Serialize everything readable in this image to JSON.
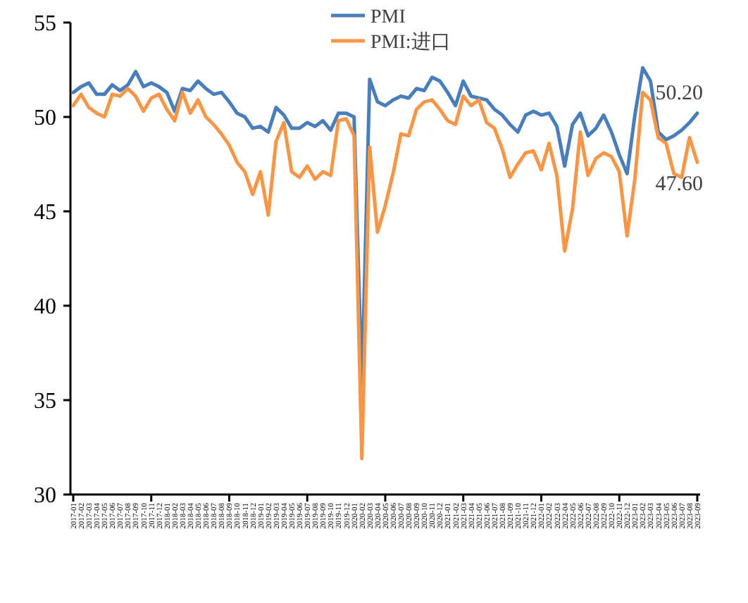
{
  "chart_data": {
    "type": "line",
    "categories": [
      "2017-01",
      "2017-02",
      "2017-03",
      "2017-04",
      "2017-05",
      "2017-06",
      "2017-07",
      "2017-08",
      "2017-09",
      "2017-10",
      "2017-11",
      "2017-12",
      "2018-01",
      "2018-02",
      "2018-03",
      "2018-04",
      "2018-05",
      "2018-06",
      "2018-07",
      "2018-08",
      "2018-09",
      "2018-10",
      "2018-11",
      "2018-12",
      "2019-01",
      "2019-02",
      "2019-03",
      "2019-04",
      "2019-05",
      "2019-06",
      "2019-07",
      "2019-08",
      "2019-09",
      "2019-10",
      "2019-11",
      "2019-12",
      "2020-01",
      "2020-02",
      "2020-03",
      "2020-04",
      "2020-05",
      "2020-06",
      "2020-07",
      "2020-08",
      "2020-09",
      "2020-10",
      "2020-11",
      "2020-12",
      "2021-01",
      "2021-02",
      "2021-03",
      "2021-04",
      "2021-05",
      "2021-06",
      "2021-07",
      "2021-08",
      "2021-09",
      "2021-10",
      "2021-11",
      "2021-12",
      "2022-01",
      "2022-02",
      "2022-03",
      "2022-04",
      "2022-05",
      "2022-06",
      "2022-07",
      "2022-08",
      "2022-09",
      "2022-10",
      "2022-11",
      "2022-12",
      "2023-01",
      "2023-02",
      "2023-03",
      "2023-04",
      "2023-05",
      "2023-06",
      "2023-07",
      "2023-08",
      "2023-09"
    ],
    "series": [
      {
        "name": "PMI",
        "color": "#4a7ebb",
        "values": [
          51.3,
          51.6,
          51.8,
          51.2,
          51.2,
          51.7,
          51.4,
          51.7,
          52.4,
          51.6,
          51.8,
          51.6,
          51.3,
          50.3,
          51.5,
          51.4,
          51.9,
          51.5,
          51.2,
          51.3,
          50.8,
          50.2,
          50.0,
          49.4,
          49.5,
          49.2,
          50.5,
          50.1,
          49.4,
          49.4,
          49.7,
          49.5,
          49.8,
          49.3,
          50.2,
          50.2,
          50.0,
          35.7,
          52.0,
          50.8,
          50.6,
          50.9,
          51.1,
          51.0,
          51.5,
          51.4,
          52.1,
          51.9,
          51.3,
          50.6,
          51.9,
          51.1,
          51.0,
          50.9,
          50.4,
          50.1,
          49.6,
          49.2,
          50.1,
          50.3,
          50.1,
          50.2,
          49.5,
          47.4,
          49.6,
          50.2,
          49.0,
          49.4,
          50.1,
          49.2,
          48.0,
          47.0,
          50.1,
          52.6,
          51.9,
          49.2,
          48.8,
          49.0,
          49.3,
          49.7,
          50.2
        ]
      },
      {
        "name": "PMI:进口",
        "color": "#f79646",
        "values": [
          50.6,
          51.2,
          50.5,
          50.2,
          50.0,
          51.2,
          51.1,
          51.5,
          51.1,
          50.3,
          51.0,
          51.2,
          50.4,
          49.8,
          51.3,
          50.2,
          50.9,
          50.0,
          49.6,
          49.1,
          48.5,
          47.6,
          47.1,
          45.9,
          47.1,
          44.8,
          48.7,
          49.7,
          47.1,
          46.8,
          47.4,
          46.7,
          47.1,
          46.9,
          49.8,
          49.9,
          49.0,
          31.9,
          48.4,
          43.9,
          45.3,
          47.0,
          49.1,
          49.0,
          50.4,
          50.8,
          50.9,
          50.4,
          49.8,
          49.6,
          51.1,
          50.6,
          50.9,
          49.7,
          49.4,
          48.3,
          46.8,
          47.5,
          48.1,
          48.2,
          47.2,
          48.6,
          46.9,
          42.9,
          45.1,
          49.2,
          46.9,
          47.8,
          48.1,
          47.9,
          47.1,
          43.7,
          46.7,
          51.3,
          50.9,
          48.9,
          48.6,
          47.0,
          46.8,
          48.9,
          47.6
        ]
      }
    ],
    "ylim": [
      30,
      55
    ],
    "yticks": [
      30,
      35,
      40,
      45,
      50,
      55
    ],
    "grid": false,
    "legend": "top",
    "marker": "none",
    "line_style": "solid",
    "annotations": [
      {
        "text": "50.20",
        "x": "2023-09",
        "y": 50.2
      },
      {
        "text": "47.60",
        "x": "2023-09",
        "y": 47.6
      }
    ]
  }
}
